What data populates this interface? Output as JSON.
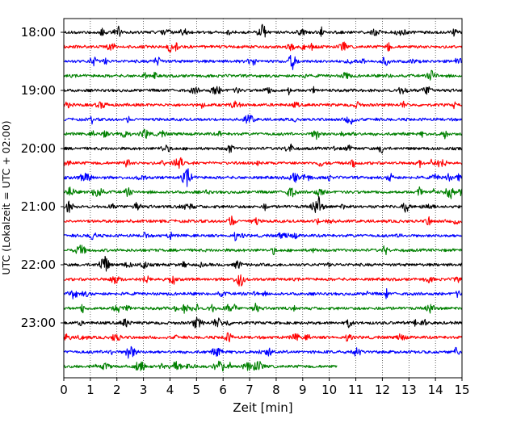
{
  "chart_data": {
    "type": "line",
    "chart_kind": "helicorder",
    "xlabel": "Zeit  [min]",
    "ylabel": "UTC (Lokalzeit = UTC + 02:00)",
    "xlim": [
      0,
      15
    ],
    "x_ticks": [
      0,
      1,
      2,
      3,
      4,
      5,
      6,
      7,
      8,
      9,
      10,
      11,
      12,
      13,
      14,
      15
    ],
    "x_tick_labels": [
      "0",
      "1",
      "2",
      "3",
      "4",
      "5",
      "6",
      "7",
      "8",
      "9",
      "10",
      "11",
      "12",
      "13",
      "14",
      "15"
    ],
    "y_ticks": [
      {
        "label": "18:00",
        "row": 0
      },
      {
        "label": "19:00",
        "row": 4
      },
      {
        "label": "20:00",
        "row": 8
      },
      {
        "label": "21:00",
        "row": 12
      },
      {
        "label": "22:00",
        "row": 16
      },
      {
        "label": "23:00",
        "row": 20
      }
    ],
    "vertical_grid": "dotted",
    "trace_colors": [
      "#000000",
      "#ff0000",
      "#0000ff",
      "#008000"
    ],
    "rows": [
      {
        "start": "18:00",
        "color": "#000000",
        "end_min": 15
      },
      {
        "start": "18:15",
        "color": "#ff0000",
        "end_min": 15
      },
      {
        "start": "18:30",
        "color": "#0000ff",
        "end_min": 15
      },
      {
        "start": "18:45",
        "color": "#008000",
        "end_min": 15
      },
      {
        "start": "19:00",
        "color": "#000000",
        "end_min": 15
      },
      {
        "start": "19:15",
        "color": "#ff0000",
        "end_min": 15
      },
      {
        "start": "19:30",
        "color": "#0000ff",
        "end_min": 15
      },
      {
        "start": "19:45",
        "color": "#008000",
        "end_min": 15
      },
      {
        "start": "20:00",
        "color": "#000000",
        "end_min": 15
      },
      {
        "start": "20:15",
        "color": "#ff0000",
        "end_min": 15
      },
      {
        "start": "20:30",
        "color": "#0000ff",
        "end_min": 15
      },
      {
        "start": "20:45",
        "color": "#008000",
        "end_min": 15
      },
      {
        "start": "21:00",
        "color": "#000000",
        "end_min": 15
      },
      {
        "start": "21:15",
        "color": "#ff0000",
        "end_min": 15
      },
      {
        "start": "21:30",
        "color": "#0000ff",
        "end_min": 15
      },
      {
        "start": "21:45",
        "color": "#008000",
        "end_min": 15
      },
      {
        "start": "22:00",
        "color": "#000000",
        "end_min": 15
      },
      {
        "start": "22:15",
        "color": "#ff0000",
        "end_min": 15
      },
      {
        "start": "22:30",
        "color": "#0000ff",
        "end_min": 15
      },
      {
        "start": "22:45",
        "color": "#008000",
        "end_min": 15
      },
      {
        "start": "23:00",
        "color": "#000000",
        "end_min": 15
      },
      {
        "start": "23:15",
        "color": "#ff0000",
        "end_min": 15
      },
      {
        "start": "23:30",
        "color": "#0000ff",
        "end_min": 15
      },
      {
        "start": "23:45",
        "color": "#008000",
        "end_min": 10.3
      }
    ]
  }
}
